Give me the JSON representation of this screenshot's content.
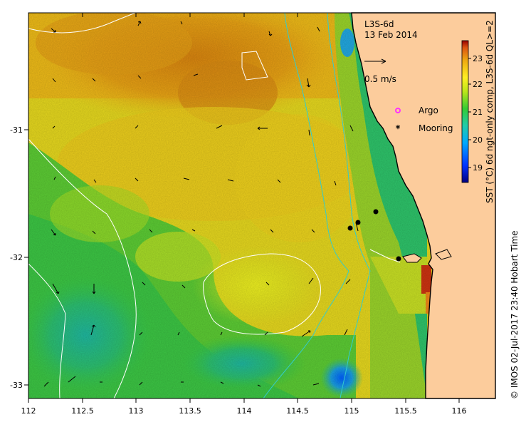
{
  "map": {
    "product_title": "L3S-6d",
    "date": "13 Feb 2014",
    "speed_scale_label": "0.5 m/s",
    "legend": {
      "argo_label": "Argo",
      "mooring_label": "Mooring",
      "argo_color": "#ff33ff",
      "mooring_color": "#000000"
    },
    "lon_ticks": [
      "112",
      "112.5",
      "113",
      "113.5",
      "114",
      "114.5",
      "115",
      "115.5",
      "116"
    ],
    "lat_ticks": [
      "-31",
      "-32",
      "-33"
    ],
    "colorbar": {
      "ticks": [
        "23",
        "22",
        "21",
        "20",
        "19"
      ],
      "label": "SST (°C) 6d ngt-only comp, L3S-6d QL>=2",
      "range": [
        18.6,
        23.6
      ]
    },
    "credit": "© IMOS 02-Jul-2017 23:40 Hobart Time",
    "colors": {
      "land": "#fccc9c",
      "coast": "#000000",
      "isobath": "#33cccc",
      "contour": "#ffffff"
    },
    "moorings": [
      [
        114.97,
        -31.77
      ],
      [
        115.05,
        -31.73
      ],
      [
        115.22,
        -31.64
      ],
      [
        115.42,
        -32.02
      ]
    ]
  }
}
